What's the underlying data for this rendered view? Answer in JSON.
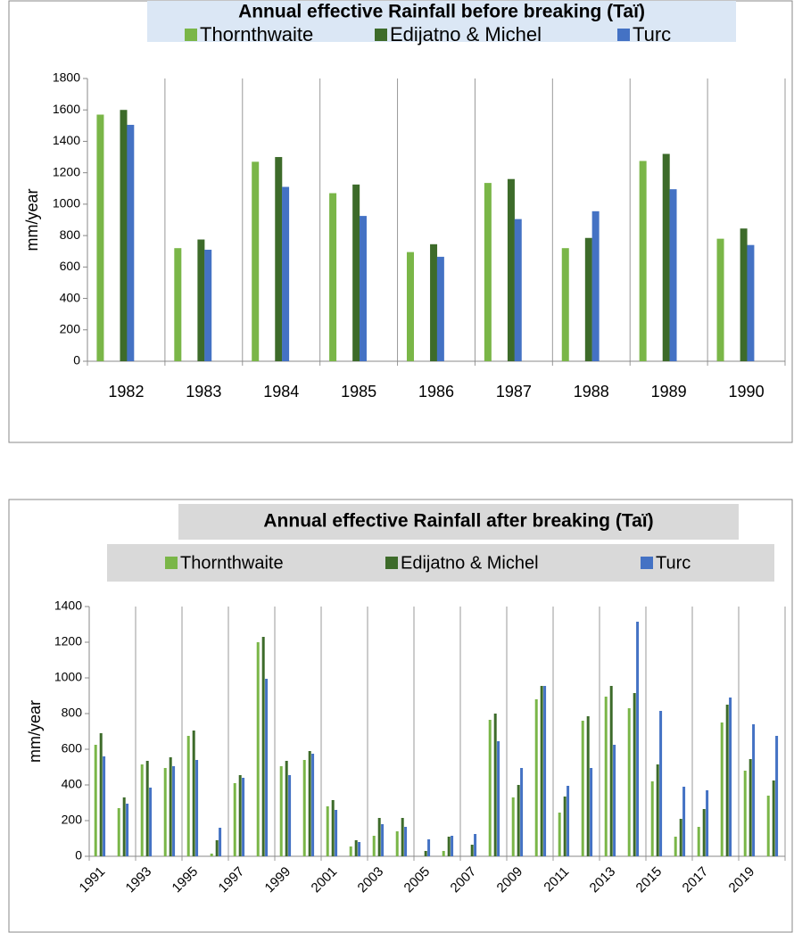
{
  "chart_data": [
    {
      "type": "bar",
      "title": "Annual effective Rainfall  before breaking (Taï)",
      "y_label": "mm/year",
      "categories": [
        "1982",
        "1983",
        "1984",
        "1985",
        "1986",
        "1987",
        "1988",
        "1989",
        "1990"
      ],
      "series": [
        {
          "name": "Thornthwaite",
          "color": "#7ab648",
          "values": [
            1570,
            720,
            1270,
            1070,
            695,
            1135,
            720,
            1275,
            780
          ]
        },
        {
          "name": "Edijatno & Michel",
          "color": "#3d6b2a",
          "values": [
            1600,
            775,
            1300,
            1125,
            745,
            1160,
            785,
            1320,
            845
          ]
        },
        {
          "name": "Turc",
          "color": "#4472c4",
          "values": [
            1505,
            710,
            1110,
            925,
            665,
            905,
            955,
            1095,
            740
          ]
        }
      ],
      "ylim": [
        0,
        1800
      ],
      "yticks": [
        0,
        200,
        400,
        600,
        800,
        1000,
        1200,
        1400,
        1600,
        1800
      ],
      "grid": false
    },
    {
      "type": "bar",
      "title": "Annual effective Rainfall  after breaking (Taï)",
      "y_label": "mm/year",
      "categories": [
        "1991",
        null,
        "1993",
        null,
        "1995",
        null,
        "1997",
        null,
        "1999",
        null,
        "2001",
        null,
        "2003",
        null,
        "2005",
        null,
        "2007",
        null,
        "2009",
        null,
        "2011",
        null,
        "2013",
        null,
        "2015",
        null,
        "2017",
        null,
        "2019",
        null
      ],
      "series": [
        {
          "name": "Thornthwaite",
          "color": "#7ab648",
          "values": [
            625,
            270,
            515,
            495,
            675,
            15,
            410,
            1200,
            505,
            540,
            280,
            55,
            115,
            140,
            0,
            30,
            0,
            765,
            330,
            880,
            245,
            760,
            895,
            830,
            420,
            110,
            165,
            750,
            480,
            340
          ]
        },
        {
          "name": "Edijatno & Michel",
          "color": "#3d6b2a",
          "values": [
            690,
            330,
            535,
            555,
            705,
            90,
            455,
            1230,
            535,
            590,
            315,
            90,
            215,
            215,
            30,
            110,
            65,
            800,
            400,
            955,
            335,
            785,
            955,
            915,
            515,
            210,
            265,
            850,
            545,
            425
          ]
        },
        {
          "name": "Turc",
          "color": "#4472c4",
          "values": [
            560,
            295,
            385,
            505,
            540,
            160,
            440,
            995,
            455,
            575,
            260,
            80,
            180,
            165,
            95,
            115,
            125,
            645,
            495,
            955,
            395,
            495,
            625,
            1315,
            815,
            390,
            370,
            890,
            740,
            675
          ]
        }
      ],
      "ylim": [
        0,
        1400
      ],
      "yticks": [
        0,
        200,
        400,
        600,
        800,
        1000,
        1200,
        1400
      ],
      "grid": false
    }
  ]
}
